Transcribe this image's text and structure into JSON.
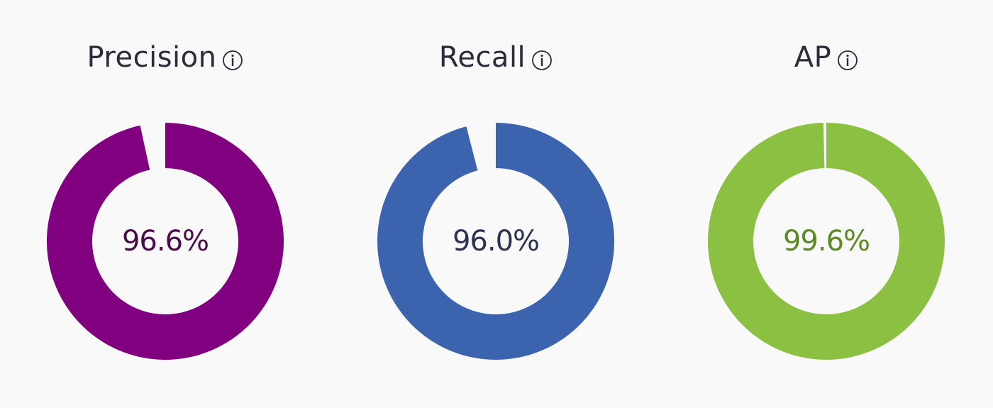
{
  "metrics": [
    {
      "title": "Precision",
      "value_label": "96.6%",
      "value": 96.6,
      "color": "#800080",
      "text_color": "#4a0c4a",
      "info_icon": "info-icon"
    },
    {
      "title": "Recall",
      "value_label": "96.0%",
      "value": 96.0,
      "color": "#3b63ae",
      "text_color": "#2b3550",
      "info_icon": "info-icon"
    },
    {
      "title": "AP",
      "value_label": "99.6%",
      "value": 99.6,
      "color": "#8bc043",
      "text_color": "#5d8a22",
      "info_icon": "info-icon"
    }
  ]
}
